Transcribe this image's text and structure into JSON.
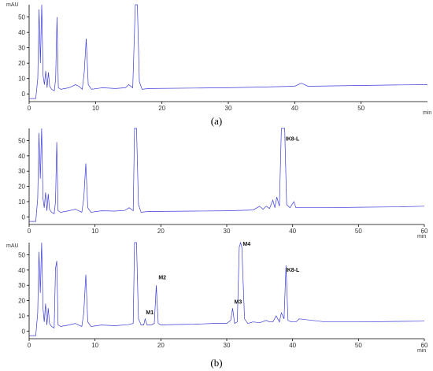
{
  "chart_data": [
    {
      "type": "line",
      "panel_label": "(a)",
      "ylabel": "mAU",
      "xlabel": "min",
      "xlim": [
        0,
        60
      ],
      "ylim": [
        -5,
        58
      ],
      "xticks": [
        0,
        10,
        20,
        30,
        40,
        50
      ],
      "yticks": [
        0,
        10,
        20,
        30,
        40,
        50
      ],
      "peak_labels": [],
      "series": [
        {
          "x": [
            0,
            1.0,
            1.3,
            1.5,
            1.7,
            1.9,
            2.1,
            2.3,
            2.5,
            2.7,
            2.9,
            3.1,
            3.4,
            3.8,
            4.0,
            4.2,
            4.4,
            4.8,
            6.0,
            7.0,
            7.5,
            8.0,
            8.3,
            8.6,
            8.9,
            9.4,
            11,
            13,
            14.5,
            15,
            15.6,
            16.0,
            16.3,
            16.6,
            17.0,
            18,
            25,
            30,
            35,
            40,
            41,
            42,
            45,
            50,
            55,
            60
          ],
          "y": [
            -3,
            -3,
            10,
            55,
            20,
            60,
            12,
            6,
            15,
            4,
            14,
            5,
            3,
            2,
            10,
            50,
            4,
            3,
            4,
            6,
            5,
            3,
            14,
            36,
            6,
            3,
            4,
            3.5,
            4,
            6,
            4,
            58,
            58,
            8,
            3,
            3.5,
            3.8,
            4,
            4.5,
            5,
            7,
            5,
            5.2,
            5.5,
            5.8,
            6
          ]
        }
      ]
    },
    {
      "type": "line",
      "panel_label": "",
      "ylabel": "",
      "xlabel": "min",
      "xlim": [
        0,
        60
      ],
      "ylim": [
        -5,
        58
      ],
      "xticks": [
        0,
        10,
        20,
        30,
        40,
        50,
        60
      ],
      "yticks": [
        0,
        10,
        20,
        30,
        40,
        50
      ],
      "peak_labels": [
        {
          "text": "IK8-L",
          "x": 38.7,
          "y": 50
        }
      ],
      "series": [
        {
          "x": [
            0,
            1.0,
            1.3,
            1.5,
            1.7,
            1.9,
            2.1,
            2.3,
            2.5,
            2.7,
            2.9,
            3.1,
            3.4,
            3.8,
            4.0,
            4.2,
            4.4,
            4.8,
            6.0,
            7.0,
            7.5,
            8.0,
            8.3,
            8.6,
            8.9,
            9.4,
            11,
            13,
            14.5,
            15.2,
            15.8,
            16.0,
            16.3,
            16.6,
            17.0,
            18,
            25,
            30,
            34,
            35,
            35.5,
            36.0,
            36.5,
            37.0,
            37.3,
            37.6,
            38.0,
            38.3,
            38.6,
            38.8,
            39.1,
            39.6,
            40.2,
            40.5,
            41,
            45,
            50,
            55,
            60
          ],
          "y": [
            -3,
            -3,
            12,
            55,
            25,
            60,
            12,
            6,
            16,
            4,
            15,
            5,
            3,
            2,
            10,
            49,
            4,
            3,
            4,
            5,
            4,
            3,
            12,
            35,
            6,
            3,
            4,
            3.8,
            4.2,
            6,
            4,
            58,
            58,
            8,
            3,
            3.5,
            3.8,
            4,
            4.5,
            7,
            5,
            7,
            5.5,
            11,
            6,
            13,
            7,
            60,
            60,
            60,
            8,
            6,
            10,
            6,
            6,
            6,
            6.3,
            6.5,
            7
          ]
        }
      ]
    },
    {
      "type": "line",
      "panel_label": "(b)",
      "ylabel": "mAU",
      "xlabel": "min",
      "xlim": [
        0,
        60
      ],
      "ylim": [
        -5,
        58
      ],
      "xticks": [
        0,
        10,
        20,
        30,
        40,
        50,
        60
      ],
      "yticks": [
        0,
        10,
        20,
        30,
        40,
        50
      ],
      "peak_labels": [
        {
          "text": "M1",
          "x": 17.5,
          "y": 11
        },
        {
          "text": "M2",
          "x": 19.4,
          "y": 34
        },
        {
          "text": "M3",
          "x": 30.9,
          "y": 18
        },
        {
          "text": "M4",
          "x": 32.2,
          "y": 56
        },
        {
          "text": "IK8-L",
          "x": 38.7,
          "y": 39
        }
      ],
      "series": [
        {
          "x": [
            0,
            1.0,
            1.3,
            1.5,
            1.7,
            1.9,
            2.1,
            2.3,
            2.5,
            2.7,
            2.9,
            3.1,
            3.4,
            3.8,
            4.0,
            4.2,
            4.4,
            4.8,
            6.0,
            7.0,
            7.5,
            8.0,
            8.3,
            8.6,
            8.9,
            9.4,
            11,
            13,
            15,
            15.8,
            16.0,
            16.3,
            16.6,
            17.0,
            17.4,
            17.6,
            17.9,
            18.5,
            19.0,
            19.3,
            19.6,
            20,
            22,
            25,
            28,
            30,
            30.6,
            30.9,
            31.2,
            31.6,
            31.9,
            32.1,
            32.3,
            32.7,
            33.2,
            34,
            35,
            36,
            36.5,
            37,
            37.5,
            38,
            38.3,
            38.7,
            39.0,
            39.3,
            39.8,
            40.5,
            41,
            45,
            50,
            55,
            60
          ],
          "y": [
            -3,
            -3,
            12,
            52,
            25,
            58,
            15,
            6,
            18,
            4,
            15,
            5,
            3,
            2,
            41,
            46,
            4,
            3,
            4,
            5,
            4,
            3,
            12,
            37,
            6,
            3,
            4,
            3.5,
            4.2,
            5,
            58,
            58,
            8,
            4,
            4,
            8,
            4,
            4,
            5,
            30,
            5,
            4,
            4.3,
            4.5,
            5,
            5,
            7,
            15,
            5,
            6,
            55,
            58,
            55,
            8,
            5,
            6,
            5.5,
            7,
            6,
            6,
            10,
            6,
            12,
            8,
            43,
            7,
            6,
            6,
            8,
            6,
            6,
            6.3,
            6.5
          ]
        }
      ]
    }
  ]
}
